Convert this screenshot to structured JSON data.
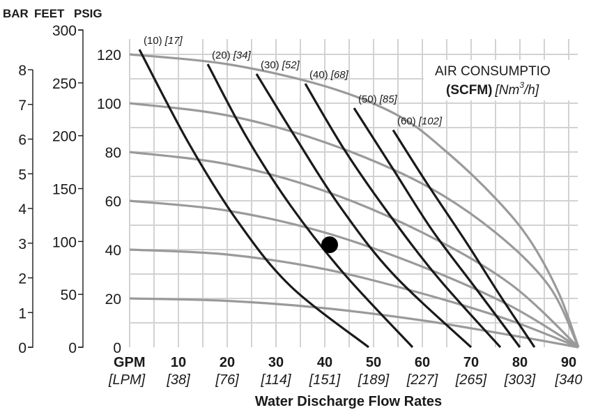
{
  "header": {
    "bar_label": "BAR",
    "feet_label": "FEET",
    "psig_label": "PSIG"
  },
  "legend": {
    "line1": "AIR CONSUMPTIO",
    "line2_bold": "(SCFM)",
    "line2_italic": "[Nm",
    "line2_sup": "3",
    "line2_tail": "/h]"
  },
  "colors": {
    "air_curve": "#1a1a1a",
    "pressure_curve": "#9a9a9a",
    "grid": "#d2d2d2",
    "marker": "#000000"
  },
  "chart_data": {
    "type": "line",
    "title": "",
    "xlabel": "Water Discharge Flow Rates",
    "x_unit_primary": "GPM",
    "x_unit_secondary": "[LPM]",
    "x_ticks": [
      {
        "gpm": "10",
        "lpm": "[38]"
      },
      {
        "gpm": "20",
        "lpm": "[76]"
      },
      {
        "gpm": "30",
        "lpm": "[114]"
      },
      {
        "gpm": "40",
        "lpm": "[151]"
      },
      {
        "gpm": "50",
        "lpm": "[189]"
      },
      {
        "gpm": "60",
        "lpm": "[227]"
      },
      {
        "gpm": "70",
        "lpm": "[265]"
      },
      {
        "gpm": "80",
        "lpm": "[303]"
      },
      {
        "gpm": "90",
        "lpm": "[340"
      }
    ],
    "xlim": [
      0,
      92
    ],
    "ylim_psig": [
      0,
      125
    ],
    "y_ticks_psig": [
      "0",
      "20",
      "40",
      "60",
      "80",
      "100",
      "120"
    ],
    "y_ticks_feet": [
      "0",
      "50",
      "100",
      "150",
      "200",
      "250",
      "300"
    ],
    "y_ticks_bar": [
      "0",
      "1",
      "2",
      "3",
      "4",
      "5",
      "6",
      "7",
      "8"
    ],
    "grid": true,
    "pressure_curves": [
      {
        "points": [
          [
            0,
            20
          ],
          [
            20,
            19
          ],
          [
            40,
            16
          ],
          [
            60,
            11
          ],
          [
            78,
            5
          ],
          [
            92,
            0
          ]
        ]
      },
      {
        "points": [
          [
            0,
            40
          ],
          [
            20,
            38
          ],
          [
            40,
            32
          ],
          [
            60,
            22
          ],
          [
            78,
            11
          ],
          [
            92,
            0
          ]
        ]
      },
      {
        "points": [
          [
            0,
            60
          ],
          [
            20,
            56
          ],
          [
            40,
            47
          ],
          [
            60,
            33
          ],
          [
            78,
            17
          ],
          [
            92,
            0
          ]
        ]
      },
      {
        "points": [
          [
            0,
            80
          ],
          [
            20,
            75
          ],
          [
            40,
            64
          ],
          [
            60,
            47
          ],
          [
            78,
            26
          ],
          [
            92,
            0
          ]
        ]
      },
      {
        "points": [
          [
            0,
            100
          ],
          [
            20,
            95
          ],
          [
            40,
            84
          ],
          [
            60,
            67
          ],
          [
            75,
            47
          ],
          [
            86,
            25
          ],
          [
            92,
            0
          ]
        ]
      },
      {
        "points": [
          [
            0,
            120
          ],
          [
            20,
            116
          ],
          [
            40,
            107
          ],
          [
            55,
            95
          ],
          [
            65,
            80
          ],
          [
            75,
            61
          ],
          [
            82,
            44
          ],
          [
            88,
            22
          ],
          [
            92,
            0
          ]
        ]
      }
    ],
    "air_curves": [
      {
        "label": "(10)",
        "label_nm": "[17]",
        "points": [
          [
            2,
            122
          ],
          [
            12,
            84
          ],
          [
            22,
            52
          ],
          [
            33,
            25
          ],
          [
            49,
            0
          ]
        ]
      },
      {
        "label": "(20)",
        "label_nm": "[34]",
        "points": [
          [
            16,
            116
          ],
          [
            24,
            86
          ],
          [
            33,
            58
          ],
          [
            44,
            30
          ],
          [
            58,
            0
          ]
        ]
      },
      {
        "label": "(30)",
        "label_nm": "[52]",
        "points": [
          [
            26,
            112
          ],
          [
            34,
            86
          ],
          [
            43,
            58
          ],
          [
            54,
            30
          ],
          [
            70,
            0
          ]
        ]
      },
      {
        "label": "(40)",
        "label_nm": "[68]",
        "points": [
          [
            36,
            108
          ],
          [
            44,
            81
          ],
          [
            53,
            55
          ],
          [
            63,
            29
          ],
          [
            76,
            0
          ]
        ]
      },
      {
        "label": "(50)",
        "label_nm": "[85]",
        "points": [
          [
            46,
            98
          ],
          [
            54,
            73
          ],
          [
            62,
            48
          ],
          [
            71,
            24
          ],
          [
            80,
            0
          ]
        ]
      },
      {
        "label": "(60)",
        "label_nm": "[102]",
        "points": [
          [
            54,
            89
          ],
          [
            61,
            67
          ],
          [
            69,
            43
          ],
          [
            76,
            21
          ],
          [
            83,
            0
          ]
        ]
      }
    ],
    "marker": {
      "x": 41,
      "y": 42
    }
  }
}
